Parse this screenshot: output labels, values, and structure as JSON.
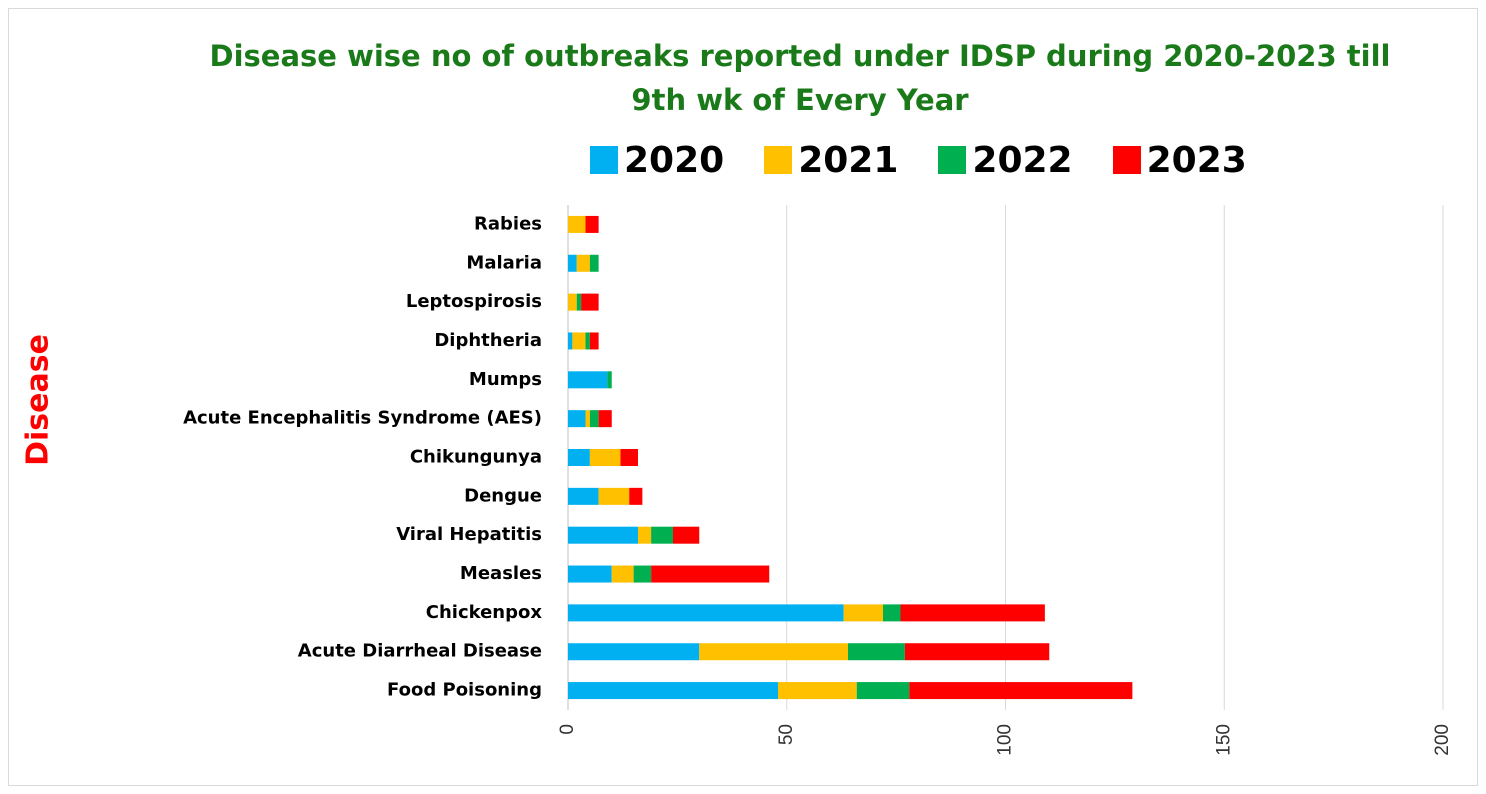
{
  "chart_data": {
    "type": "bar",
    "orientation": "horizontal",
    "stacked": true,
    "title": "Disease wise no of outbreaks reported under IDSP during  2020-2023 till 9th wk of Every Year",
    "title_lines": [
      "Disease wise no of outbreaks reported under IDSP during  2020-2023 till",
      "9th wk of Every Year"
    ],
    "ylabel": "Disease",
    "xlabel": "",
    "xlim": [
      0,
      200
    ],
    "xticks": [
      0,
      50,
      100,
      150,
      200
    ],
    "grid": true,
    "legend_position": "top",
    "categories": [
      "Food Poisoning",
      "Acute Diarrheal Disease",
      "Chickenpox",
      "Measles",
      "Viral Hepatitis",
      "Dengue",
      "Chikungunya",
      "Acute Encephalitis Syndrome (AES)",
      "Mumps",
      "Diphtheria",
      "Leptospirosis",
      "Malaria",
      "Rabies"
    ],
    "series": [
      {
        "name": "2020",
        "color": "#00b0f0",
        "values": [
          48,
          30,
          63,
          10,
          16,
          7,
          5,
          4,
          9,
          1,
          0,
          2,
          0
        ]
      },
      {
        "name": "2021",
        "color": "#ffc000",
        "values": [
          18,
          34,
          9,
          5,
          3,
          7,
          7,
          1,
          0,
          3,
          2,
          3,
          4
        ]
      },
      {
        "name": "2022",
        "color": "#00b050",
        "values": [
          12,
          13,
          4,
          4,
          5,
          0,
          0,
          2,
          1,
          1,
          1,
          2,
          0
        ]
      },
      {
        "name": "2023",
        "color": "#ff0000",
        "values": [
          51,
          33,
          33,
          27,
          6,
          3,
          4,
          3,
          0,
          2,
          4,
          0,
          3
        ]
      }
    ]
  }
}
